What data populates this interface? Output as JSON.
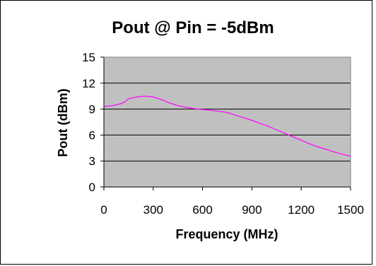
{
  "chart_data": {
    "type": "line",
    "title": "Pout @ Pin = -5dBm",
    "xlabel": "Frequency (MHz)",
    "ylabel": "Pout (dBm)",
    "xlim": [
      0,
      1500
    ],
    "ylim": [
      0,
      15
    ],
    "xticks": [
      0,
      300,
      600,
      900,
      1200,
      1500
    ],
    "yticks": [
      0,
      3,
      6,
      9,
      12,
      15
    ],
    "x_tick_labels": [
      "0",
      "300",
      "600",
      "900",
      "1200",
      "1500"
    ],
    "y_tick_labels": [
      "0",
      "3",
      "6",
      "9",
      "12",
      "15"
    ],
    "grid": "horizontal major gridlines",
    "legend": "none",
    "plot_background": "#c0c0c0",
    "gridline_color": "#000000",
    "series": [
      {
        "color": "#ff00ff",
        "x": [
          0,
          50,
          100,
          125,
          150,
          175,
          200,
          250,
          300,
          350,
          400,
          450,
          500,
          550,
          600,
          650,
          700,
          750,
          800,
          850,
          900,
          950,
          1000,
          1050,
          1100,
          1150,
          1200,
          1250,
          1300,
          1350,
          1400,
          1450,
          1500
        ],
        "y": [
          9.3,
          9.4,
          9.6,
          9.8,
          10.2,
          10.3,
          10.4,
          10.5,
          10.4,
          10.1,
          9.7,
          9.4,
          9.2,
          9.05,
          8.95,
          8.85,
          8.75,
          8.6,
          8.3,
          8.0,
          7.7,
          7.35,
          7.0,
          6.6,
          6.2,
          5.8,
          5.4,
          5.0,
          4.65,
          4.35,
          4.05,
          3.8,
          3.55
        ]
      }
    ]
  }
}
